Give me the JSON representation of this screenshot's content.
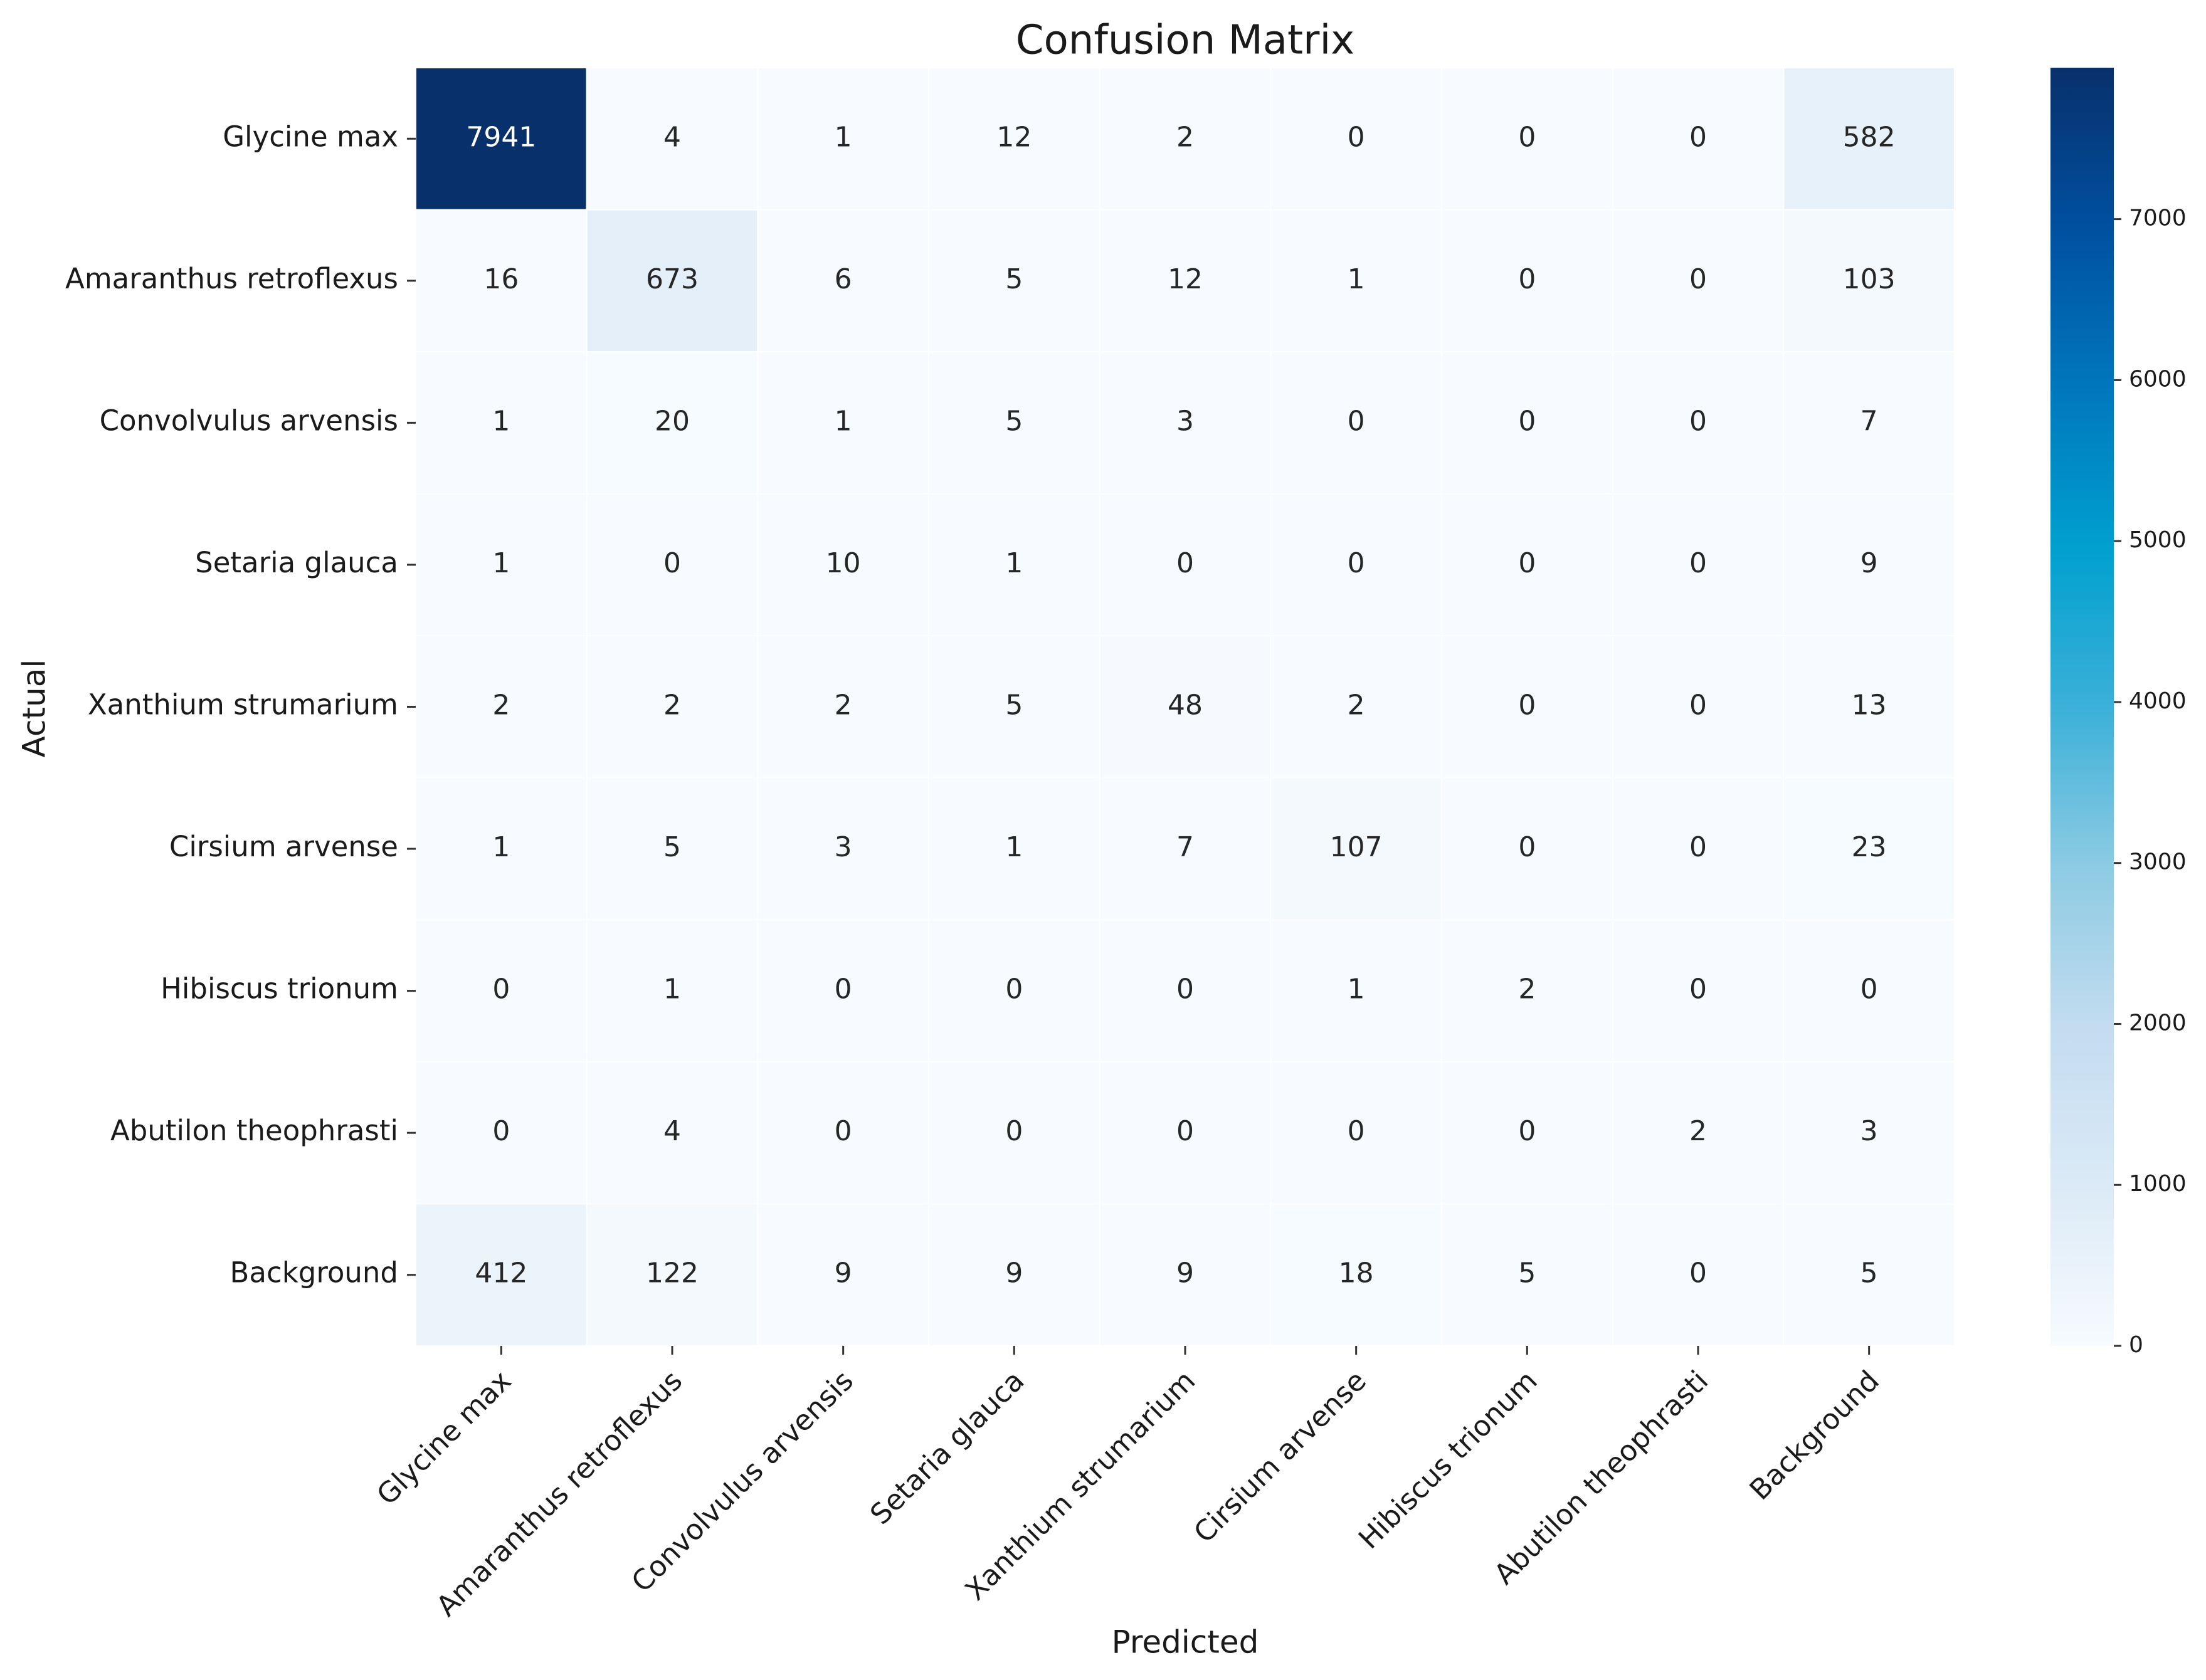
{
  "chart_data": {
    "type": "heatmap",
    "title": "Confusion Matrix",
    "xlabel": "Predicted",
    "ylabel": "Actual",
    "x_categories": [
      "Glycine max",
      "Amaranthus retroflexus",
      "Convolvulus arvensis",
      "Setaria glauca",
      "Xanthium strumarium",
      "Cirsium arvense",
      "Hibiscus trionum",
      "Abutilon theophrasti",
      "Background"
    ],
    "y_categories": [
      "Glycine max",
      "Amaranthus retroflexus",
      "Convolvulus arvensis",
      "Setaria glauca",
      "Xanthium strumarium",
      "Cirsium arvense",
      "Hibiscus trionum",
      "Abutilon theophrasti",
      "Background"
    ],
    "values": [
      [
        7941,
        4,
        1,
        12,
        2,
        0,
        0,
        0,
        582
      ],
      [
        16,
        673,
        6,
        5,
        12,
        1,
        0,
        0,
        103
      ],
      [
        1,
        20,
        1,
        5,
        3,
        0,
        0,
        0,
        7
      ],
      [
        1,
        0,
        10,
        1,
        0,
        0,
        0,
        0,
        9
      ],
      [
        2,
        2,
        2,
        5,
        48,
        2,
        0,
        0,
        13
      ],
      [
        1,
        5,
        3,
        1,
        7,
        107,
        0,
        0,
        23
      ],
      [
        0,
        1,
        0,
        0,
        0,
        1,
        2,
        0,
        0
      ],
      [
        0,
        4,
        0,
        0,
        0,
        0,
        0,
        2,
        3
      ],
      [
        412,
        122,
        9,
        9,
        9,
        18,
        5,
        0,
        5
      ]
    ],
    "zlim": [
      0,
      7941
    ],
    "zticks": [
      0,
      1000,
      2000,
      3000,
      4000,
      5000,
      6000,
      7000
    ],
    "colormap": [
      "#f7fbff",
      "#dbeaf6",
      "#c3dcf0",
      "#8ccbe3",
      "#3bb0d8",
      "#00a0cf",
      "#0077bd",
      "#0050a0",
      "#08306b"
    ]
  }
}
